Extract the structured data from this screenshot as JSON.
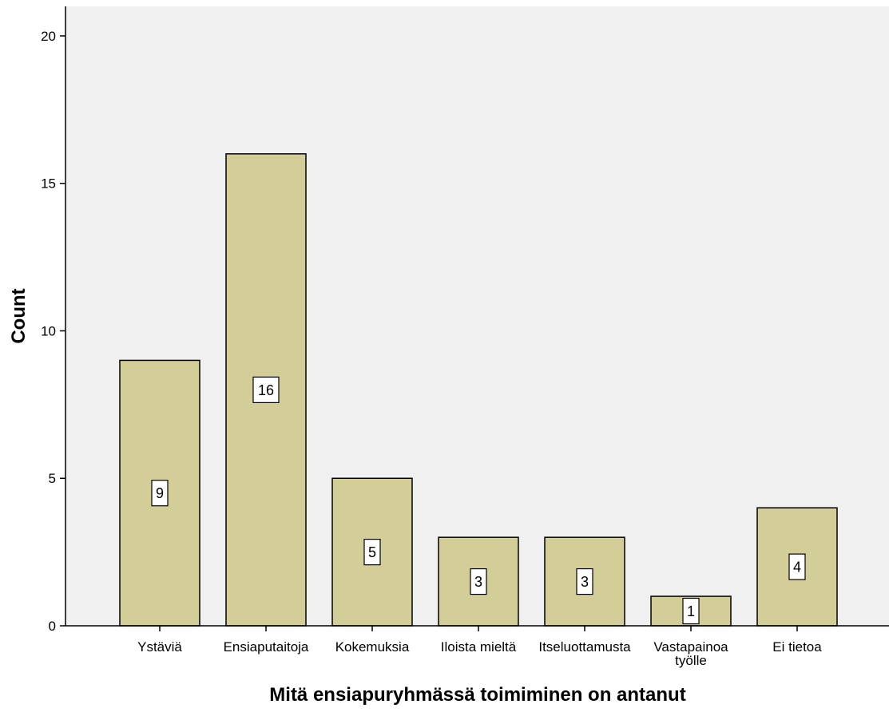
{
  "chart_data": {
    "type": "bar",
    "xlabel": "Mitä ensiapuryhmässä toimiminen on antanut",
    "ylabel": "Count",
    "ylim": [
      0,
      21
    ],
    "yticks": [
      "0",
      "5",
      "10",
      "15",
      "20"
    ],
    "grid": false,
    "categories": [
      [
        "Ystäviä"
      ],
      [
        "Ensiaputaitoja"
      ],
      [
        "Kokemuksia"
      ],
      [
        "Iloista mieltä"
      ],
      [
        "Itseluottamusta"
      ],
      [
        "Vastapainoa",
        "työlle"
      ],
      [
        "Ei tietoa"
      ]
    ],
    "values": [
      9,
      16,
      5,
      3,
      3,
      1,
      4
    ],
    "data_labels": [
      "9",
      "16",
      "5",
      "3",
      "3",
      "1",
      "4"
    ],
    "colors": {
      "plot_background": "#f0f0f0",
      "bar_fill": "#d3ce97",
      "bar_stroke": "#000000",
      "label_box": "#ffffff"
    }
  }
}
